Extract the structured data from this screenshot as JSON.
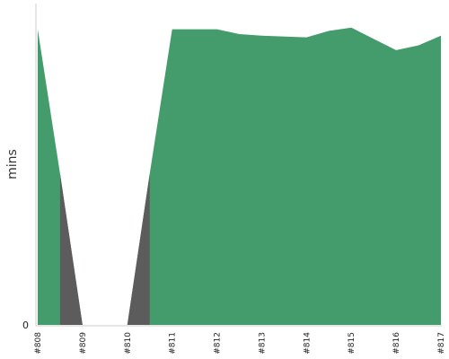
{
  "chart_data": {
    "type": "area",
    "ylabel": "mins",
    "y_ticks": [
      "0"
    ],
    "categories": [
      "#808",
      "#809",
      "#810",
      "#811",
      "#812",
      "#813",
      "#814",
      "#815",
      "#816",
      "#817"
    ],
    "ylim": [
      0,
      1
    ],
    "area_points": [
      {
        "x": 0.0,
        "y": 0.92
      },
      {
        "x": 0.5,
        "y": 0.47
      },
      {
        "x": 1.0,
        "y": 0.0
      },
      {
        "x": 2.0,
        "y": 0.0
      },
      {
        "x": 2.5,
        "y": 0.47
      },
      {
        "x": 3.0,
        "y": 0.92
      },
      {
        "x": 4.0,
        "y": 0.92
      },
      {
        "x": 4.5,
        "y": 0.905
      },
      {
        "x": 5.0,
        "y": 0.9
      },
      {
        "x": 6.0,
        "y": 0.895
      },
      {
        "x": 6.5,
        "y": 0.915
      },
      {
        "x": 7.0,
        "y": 0.925
      },
      {
        "x": 7.5,
        "y": 0.89
      },
      {
        "x": 8.0,
        "y": 0.855
      },
      {
        "x": 8.5,
        "y": 0.87
      },
      {
        "x": 9.0,
        "y": 0.9
      }
    ],
    "dark_segments": [
      [
        0.5,
        1.0
      ],
      [
        2.0,
        2.5
      ]
    ],
    "colors": {
      "area": "#449c6c",
      "failed": "#5c5c5c",
      "axis": "#cccccc"
    }
  }
}
